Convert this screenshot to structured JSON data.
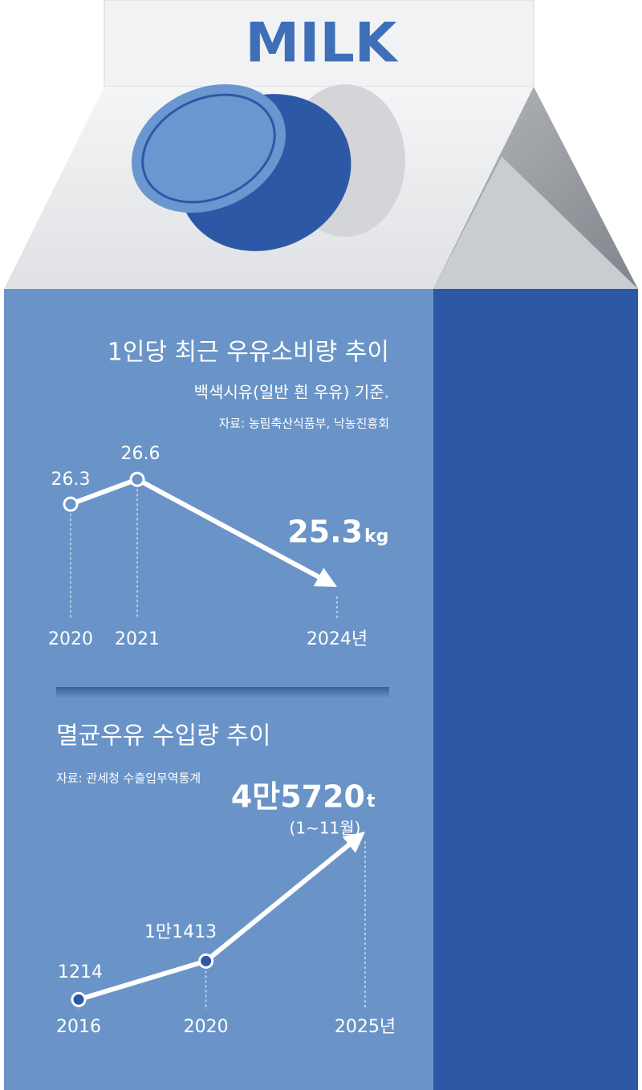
{
  "header": {
    "title": "MILK"
  },
  "chart_data": [
    {
      "type": "line",
      "title": "1인당 최근 우유소비량 추이",
      "subtitle": "백색시유(일반 흰 우유) 기준.",
      "source": "자료: 농림축산식품부, 낙농진흥회",
      "x": [
        2020,
        2021,
        2024
      ],
      "xlim": [
        2020,
        2024
      ],
      "xticks": [
        2020,
        2021,
        {
          "value": 2024,
          "label": "2024년"
        }
      ],
      "ylim": [
        25,
        27
      ],
      "series": [
        {
          "color": "#ffffff",
          "values": [
            26.3,
            26.6,
            25.3
          ],
          "value_labels": [
            "26.3",
            "26.6",
            "25.3"
          ]
        }
      ],
      "unit": "kg"
    },
    {
      "type": "line",
      "title": "멸균우유 수입량 추이",
      "source": "자료: 관세청 수출입무역통계",
      "annotation": "(1∼11월)",
      "x": [
        2016,
        2020,
        2025
      ],
      "xlim": [
        2016,
        2025
      ],
      "xticks": [
        2016,
        2020,
        {
          "value": 2025,
          "label": "2025년"
        }
      ],
      "ylim": [
        0,
        50000
      ],
      "series": [
        {
          "color": "#ffffff",
          "values": [
            1214,
            11413,
            45720
          ],
          "value_labels": [
            "1214",
            "1만1413",
            "4만5720"
          ]
        }
      ],
      "unit": "t"
    }
  ]
}
